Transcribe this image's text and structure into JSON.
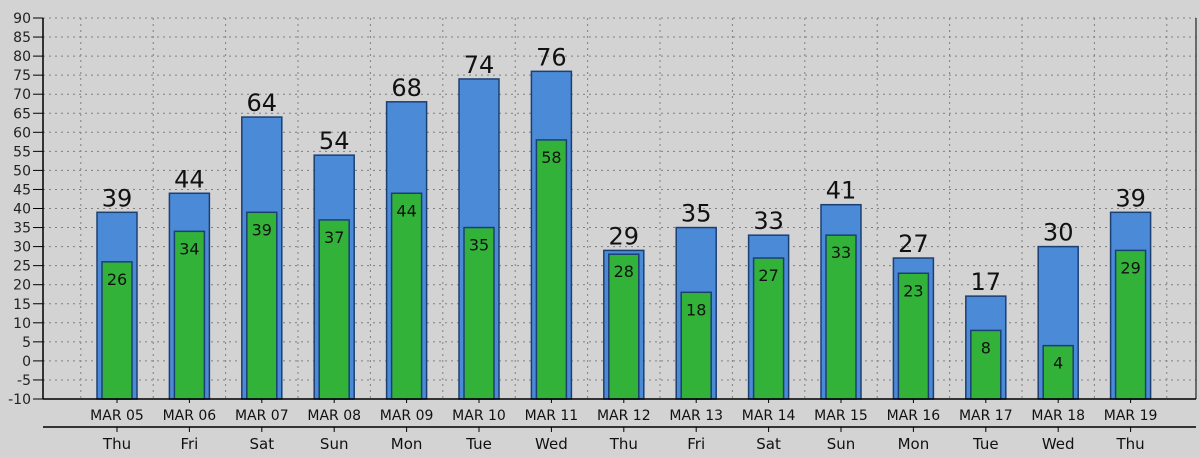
{
  "chart_data": {
    "type": "bar",
    "ylim": [
      -10,
      90
    ],
    "yticks": [
      -10,
      -5,
      0,
      5,
      10,
      15,
      20,
      25,
      30,
      35,
      40,
      45,
      50,
      55,
      60,
      65,
      70,
      75,
      80,
      85,
      90
    ],
    "grid": true,
    "categories": [
      "MAR 05",
      "MAR 06",
      "MAR 07",
      "MAR 08",
      "MAR 09",
      "MAR 10",
      "MAR 11",
      "MAR 12",
      "MAR 13",
      "MAR 14",
      "MAR 15",
      "MAR 16",
      "MAR 17",
      "MAR 18",
      "MAR 19"
    ],
    "days": [
      "Thu",
      "Fri",
      "Sat",
      "Sun",
      "Mon",
      "Tue",
      "Wed",
      "Thu",
      "Fri",
      "Sat",
      "Sun",
      "Mon",
      "Tue",
      "Wed",
      "Thu"
    ],
    "series": [
      {
        "values": [
          39,
          44,
          64,
          54,
          68,
          74,
          76,
          29,
          35,
          33,
          41,
          27,
          17,
          30,
          39
        ],
        "color": "#4a8ad6"
      },
      {
        "values": [
          26,
          34,
          39,
          37,
          44,
          35,
          58,
          28,
          18,
          27,
          33,
          23,
          8,
          4,
          29
        ],
        "color": "#33b23a"
      }
    ]
  },
  "colors": {
    "background": "#d3d3d3",
    "bar_outline": "#1c3f73",
    "grid": "#808080",
    "axis": "#000000"
  }
}
